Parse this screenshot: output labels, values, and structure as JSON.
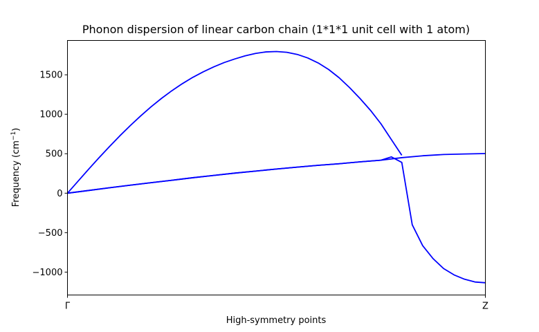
{
  "chart_data": {
    "type": "line",
    "title": "Phonon dispersion of linear carbon chain (1*1*1 unit cell with 1 atom)",
    "xlabel": "High-symmetry points",
    "ylabel": "Frequency (cm",
    "ylabel_sup": "−1",
    "ylabel_close": ")",
    "xlim": [
      0,
      1
    ],
    "ylim": [
      -1290,
      1935
    ],
    "x_ticks": [
      {
        "value": 0,
        "label": "Γ"
      },
      {
        "value": 1,
        "label": "Z"
      }
    ],
    "y_ticks": [
      {
        "value": -1000,
        "label": "−1000"
      },
      {
        "value": -500,
        "label": "−500"
      },
      {
        "value": 0,
        "label": "0"
      },
      {
        "value": 500,
        "label": "500"
      },
      {
        "value": 1000,
        "label": "1000"
      },
      {
        "value": 1500,
        "label": "1500"
      }
    ],
    "grid": false,
    "line_color": "#0000ff",
    "series": [
      {
        "x": [
          0,
          0.025,
          0.05,
          0.075,
          0.1,
          0.125,
          0.15,
          0.175,
          0.2,
          0.225,
          0.25,
          0.275,
          0.3,
          0.325,
          0.35,
          0.375,
          0.4,
          0.425,
          0.45,
          0.475,
          0.5,
          0.525,
          0.55,
          0.575,
          0.6,
          0.625,
          0.65,
          0.675,
          0.7,
          0.725,
          0.75,
          0.775,
          0.8
        ],
        "values": [
          0,
          150,
          300,
          446,
          588,
          725,
          855,
          978,
          1094,
          1201,
          1299,
          1388,
          1468,
          1538,
          1600,
          1655,
          1700,
          1740,
          1771,
          1790,
          1795,
          1785,
          1758,
          1713,
          1650,
          1567,
          1463,
          1338,
          1200,
          1050,
          880,
          680,
          480
        ]
      },
      {
        "x": [
          0,
          0.05,
          0.1,
          0.15,
          0.2,
          0.25,
          0.3,
          0.35,
          0.4,
          0.45,
          0.5,
          0.55,
          0.6,
          0.65,
          0.7,
          0.75,
          0.8,
          0.85,
          0.9,
          0.95,
          1.0
        ],
        "values": [
          0,
          34,
          68,
          101,
          133,
          164,
          196,
          225,
          254,
          280,
          306,
          330,
          353,
          373,
          397,
          418,
          450,
          474,
          490,
          497,
          502
        ]
      },
      {
        "x": [
          0,
          0.05,
          0.1,
          0.15,
          0.2,
          0.25,
          0.3,
          0.35,
          0.4,
          0.45,
          0.5,
          0.55,
          0.6,
          0.65,
          0.7,
          0.75,
          0.775,
          0.8,
          0.825,
          0.85,
          0.875,
          0.9,
          0.925,
          0.95,
          0.975,
          1.0
        ],
        "values": [
          0,
          34,
          68,
          101,
          133,
          164,
          196,
          225,
          254,
          280,
          306,
          330,
          353,
          373,
          397,
          418,
          460,
          390,
          -400,
          -665,
          -830,
          -955,
          -1035,
          -1090,
          -1125,
          -1135
        ]
      }
    ]
  }
}
